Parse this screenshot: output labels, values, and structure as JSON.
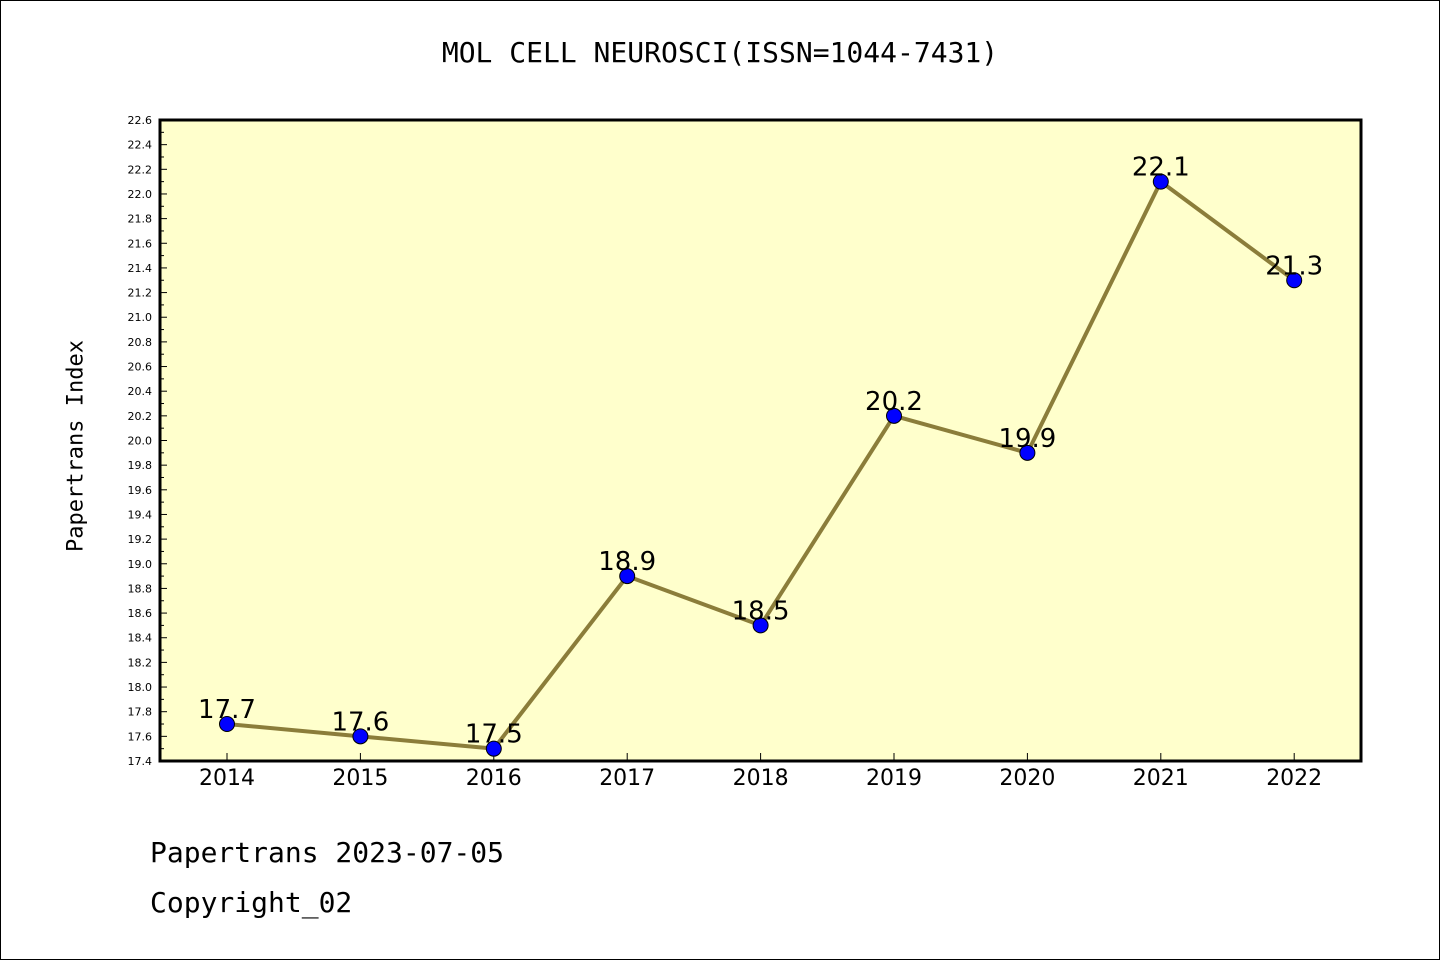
{
  "chart_data": {
    "type": "line",
    "title": "MOL CELL NEUROSCI(ISSN=1044-7431)",
    "xlabel": "",
    "ylabel": "Papertrans Index",
    "categories": [
      "2014",
      "2015",
      "2016",
      "2017",
      "2018",
      "2019",
      "2020",
      "2021",
      "2022"
    ],
    "series": [
      {
        "values": [
          17.7,
          17.6,
          17.5,
          18.9,
          18.5,
          20.2,
          19.9,
          22.1,
          21.3
        ]
      }
    ],
    "data_labels": [
      "17.7",
      "17.6",
      "17.5",
      "18.9",
      "18.5",
      "20.2",
      "19.9",
      "22.1",
      "21.3"
    ],
    "ylim": [
      17.4,
      22.6
    ],
    "y_tick_step": 0.2,
    "grid": false,
    "colors": {
      "plot_background": "#ffffcc",
      "line": "#8b7d3a",
      "marker": "#0000ff"
    }
  },
  "footer": {
    "line1": "Papertrans 2023-07-05",
    "line2": "Copyright_02"
  }
}
